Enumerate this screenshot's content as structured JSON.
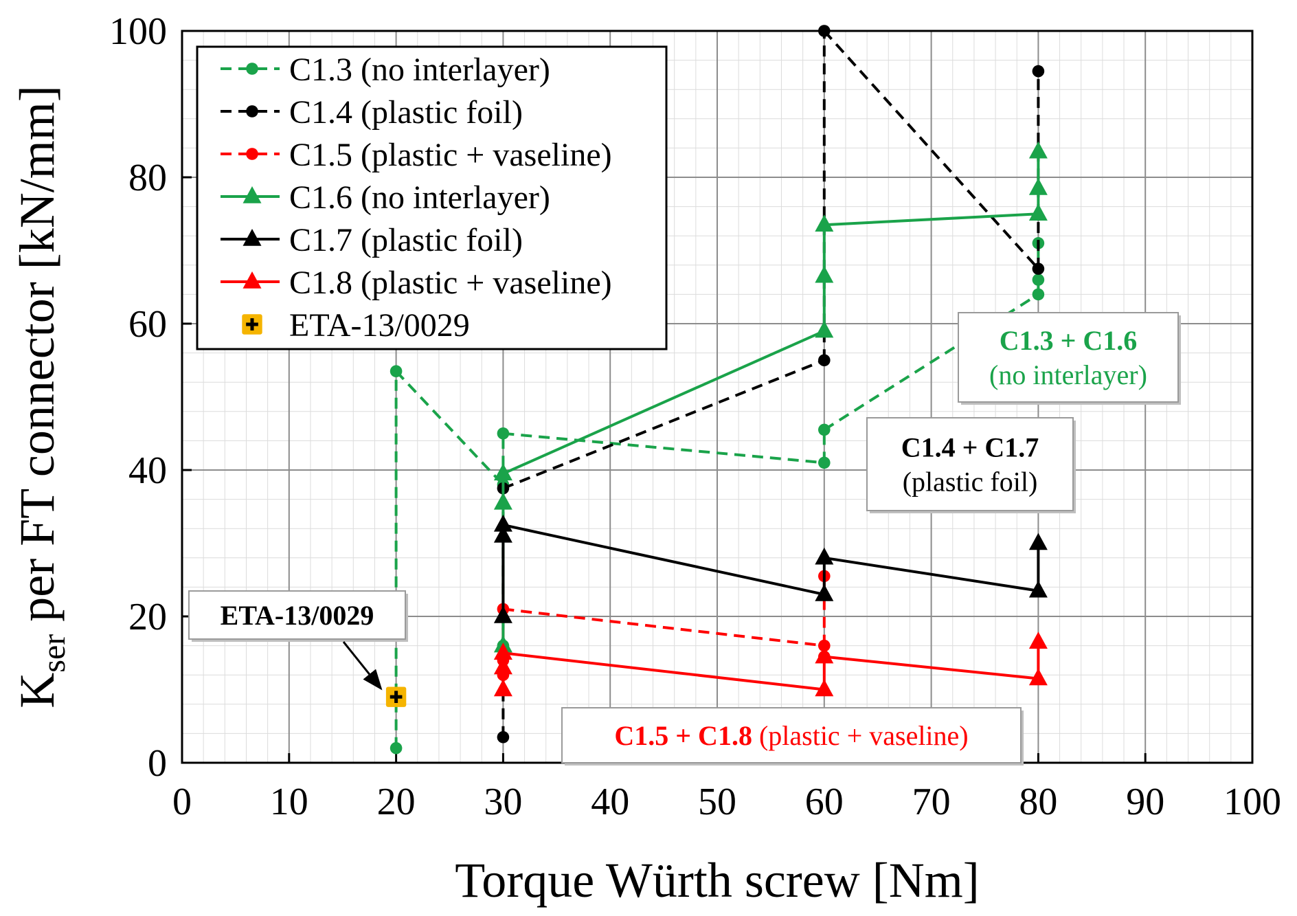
{
  "chart_data": {
    "type": "line",
    "xlabel": "Torque Würth screw [Nm]",
    "ylabel": {
      "main": "K",
      "sub": "ser",
      "rest": " per FT connector [kN/mm]"
    },
    "xlim": [
      0,
      100
    ],
    "ylim": [
      0,
      100
    ],
    "x_major_ticks": [
      0,
      10,
      20,
      30,
      40,
      50,
      60,
      70,
      80,
      90,
      100
    ],
    "y_major_ticks": [
      0,
      20,
      40,
      60,
      80,
      100
    ],
    "x_minor_step": 2,
    "y_minor_step": 4,
    "grid": true,
    "legend_position": "top-left",
    "series": [
      {
        "name": "C1.3 (no interlayer)",
        "color": "#1aa34a",
        "dash": "dashed",
        "marker": "circle",
        "x": [
          20,
          20,
          30,
          30,
          30,
          60,
          60,
          80,
          80,
          80
        ],
        "y": [
          2,
          53.5,
          38,
          45,
          16,
          41,
          45.5,
          64,
          71,
          66
        ],
        "connectors": [
          [
            0,
            1
          ],
          [
            1,
            2
          ],
          [
            2,
            3
          ],
          [
            3,
            5
          ],
          [
            5,
            6
          ],
          [
            6,
            7
          ],
          [
            7,
            8
          ]
        ]
      },
      {
        "name": "C1.4 (plastic foil)",
        "color": "#000000",
        "dash": "dashed",
        "marker": "circle",
        "x": [
          30,
          30,
          60,
          60,
          80,
          80
        ],
        "y": [
          3.5,
          37.5,
          55,
          100,
          67.5,
          94.5
        ],
        "connectors": [
          [
            0,
            1
          ],
          [
            1,
            2
          ],
          [
            2,
            3
          ],
          [
            3,
            4
          ],
          [
            4,
            5
          ]
        ]
      },
      {
        "name": "C1.5 (plastic + vaseline)",
        "color": "#ff0000",
        "dash": "dashed",
        "marker": "circle",
        "x": [
          30,
          30,
          30,
          60,
          60,
          60
        ],
        "y": [
          12,
          14,
          21,
          16,
          25.5,
          14.5
        ],
        "connectors": [
          [
            0,
            2
          ],
          [
            2,
            3
          ],
          [
            3,
            4
          ]
        ]
      },
      {
        "name": "C1.6 (no interlayer)",
        "color": "#1aa34a",
        "dash": "solid",
        "marker": "triangle",
        "x": [
          30,
          30,
          30,
          60,
          60,
          60,
          80,
          80,
          80
        ],
        "y": [
          16,
          35.5,
          39.5,
          59,
          66.5,
          73.5,
          75,
          78.5,
          83.5
        ],
        "connectors": [
          [
            0,
            2
          ],
          [
            2,
            3
          ],
          [
            3,
            5
          ],
          [
            5,
            6
          ],
          [
            6,
            8
          ]
        ]
      },
      {
        "name": "C1.7 (plastic foil)",
        "color": "#000000",
        "dash": "solid",
        "marker": "triangle",
        "x": [
          30,
          30,
          30,
          60,
          60,
          80,
          80
        ],
        "y": [
          20,
          31,
          32.5,
          23,
          28,
          23.5,
          30
        ],
        "connectors": [
          [
            0,
            2
          ],
          [
            2,
            3
          ],
          [
            3,
            4
          ],
          [
            4,
            5
          ],
          [
            5,
            6
          ]
        ]
      },
      {
        "name": "C1.8 (plastic + vaseline)",
        "color": "#ff0000",
        "dash": "solid",
        "marker": "triangle",
        "x": [
          30,
          30,
          30,
          60,
          60,
          80,
          80
        ],
        "y": [
          10,
          13,
          15,
          10,
          14.5,
          11.5,
          16.5
        ],
        "connectors": [
          [
            0,
            2
          ],
          [
            2,
            3
          ],
          [
            3,
            4
          ],
          [
            4,
            5
          ],
          [
            5,
            6
          ]
        ]
      },
      {
        "name": "ETA-13/0029",
        "color": "#f5b400",
        "dash": "none",
        "marker": "plus-square",
        "x": [
          20
        ],
        "y": [
          9
        ],
        "connectors": []
      }
    ],
    "annotations": [
      {
        "id": "ann-eta",
        "lines": [
          [
            {
              "t": "ETA-13/0029",
              "c": "#000000",
              "b": true
            }
          ]
        ],
        "arrow_to": [
          20,
          9
        ]
      },
      {
        "id": "ann-c13-c16",
        "lines": [
          [
            {
              "t": "C1.3 + C1.6",
              "c": "#1aa34a",
              "b": true
            }
          ],
          [
            {
              "t": "(no interlayer)",
              "c": "#1aa34a",
              "b": false
            }
          ]
        ]
      },
      {
        "id": "ann-c14-c17",
        "lines": [
          [
            {
              "t": "C1.4 + C1.7",
              "c": "#000000",
              "b": true
            }
          ],
          [
            {
              "t": "(plastic foil)",
              "c": "#000000",
              "b": false
            }
          ]
        ]
      },
      {
        "id": "ann-c15-c18",
        "lines": [
          [
            {
              "t": "C1.5 + C1.8",
              "c": "#ff0000",
              "b": true
            },
            {
              "t": " (plastic + vaseline)",
              "c": "#ff0000",
              "b": false
            }
          ]
        ]
      }
    ]
  }
}
